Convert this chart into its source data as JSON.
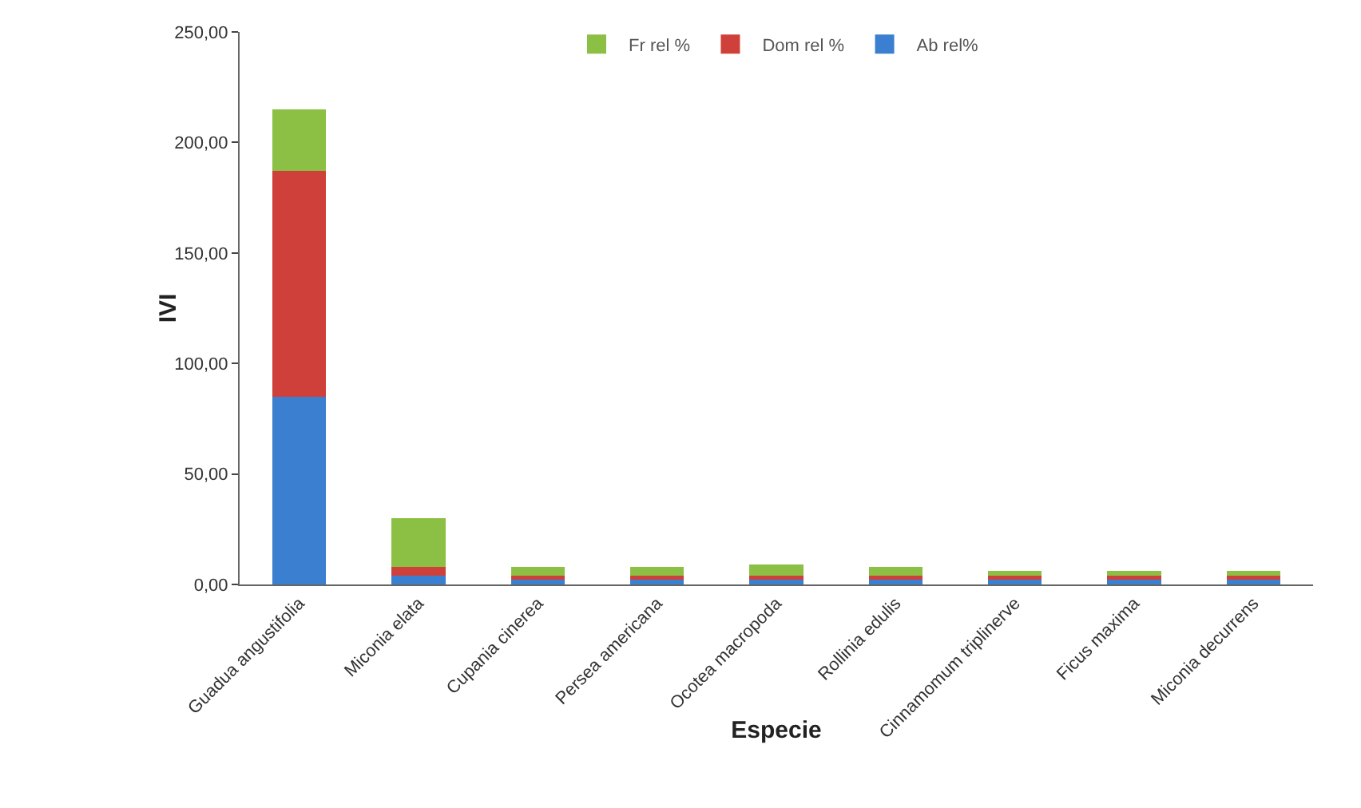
{
  "chart_data": {
    "type": "bar",
    "stacked": true,
    "xlabel": "Especie",
    "ylabel": "IVI",
    "categories": [
      "Guadua angustifolia",
      "Miconia elata",
      "Cupania cinerea",
      "Persea americana",
      "Ocotea macropoda",
      "Rollinia edulis",
      "Cinnamomum triplinerve",
      "Ficus maxima",
      "Miconia decurrens"
    ],
    "series": [
      {
        "name": "Ab rel%",
        "color": "#3a7fd0",
        "values": [
          85,
          4,
          2,
          2,
          2,
          2,
          2,
          2,
          2
        ]
      },
      {
        "name": "Dom rel %",
        "color": "#d0403a",
        "values": [
          102,
          4,
          2,
          2,
          2,
          2,
          2,
          2,
          2
        ]
      },
      {
        "name": "Fr rel %",
        "color": "#8cc044",
        "values": [
          28,
          22,
          4,
          4,
          5,
          4,
          2,
          2,
          2
        ]
      }
    ],
    "ylim": [
      0,
      250
    ],
    "yticks": [
      {
        "value": 0,
        "label": "0,00"
      },
      {
        "value": 50,
        "label": "50,00"
      },
      {
        "value": 100,
        "label": "100,00"
      },
      {
        "value": 150,
        "label": "150,00"
      },
      {
        "value": 200,
        "label": "200,00"
      },
      {
        "value": 250,
        "label": "250,00"
      }
    ],
    "legend": "top",
    "grid": false
  }
}
